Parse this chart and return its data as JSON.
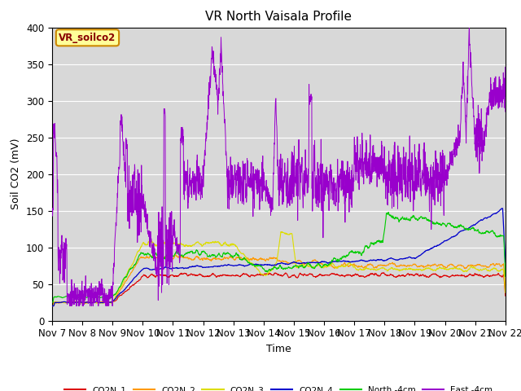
{
  "title": "VR North Vaisala Profile",
  "ylabel": "Soil CO2 (mV)",
  "xlabel": "Time",
  "annotation": "VR_soilco2",
  "ylim": [
    0,
    400
  ],
  "xlim": [
    0,
    15
  ],
  "xtick_labels": [
    "Nov 7",
    "Nov 8",
    "Nov 9",
    "Nov 10",
    "Nov 11",
    "Nov 12",
    "Nov 13",
    "Nov 14",
    "Nov 15",
    "Nov 16",
    "Nov 17",
    "Nov 18",
    "Nov 19",
    "Nov 20",
    "Nov 21",
    "Nov 22"
  ],
  "series_colors": {
    "CO2N_1": "#dd0000",
    "CO2N_2": "#ff9900",
    "CO2N_3": "#dddd00",
    "CO2N_4": "#0000cc",
    "North_4cm": "#00cc00",
    "East_4cm": "#9900cc"
  },
  "title_fontsize": 11,
  "annotation_facecolor": "#ffff99",
  "annotation_edgecolor": "#cc8800"
}
